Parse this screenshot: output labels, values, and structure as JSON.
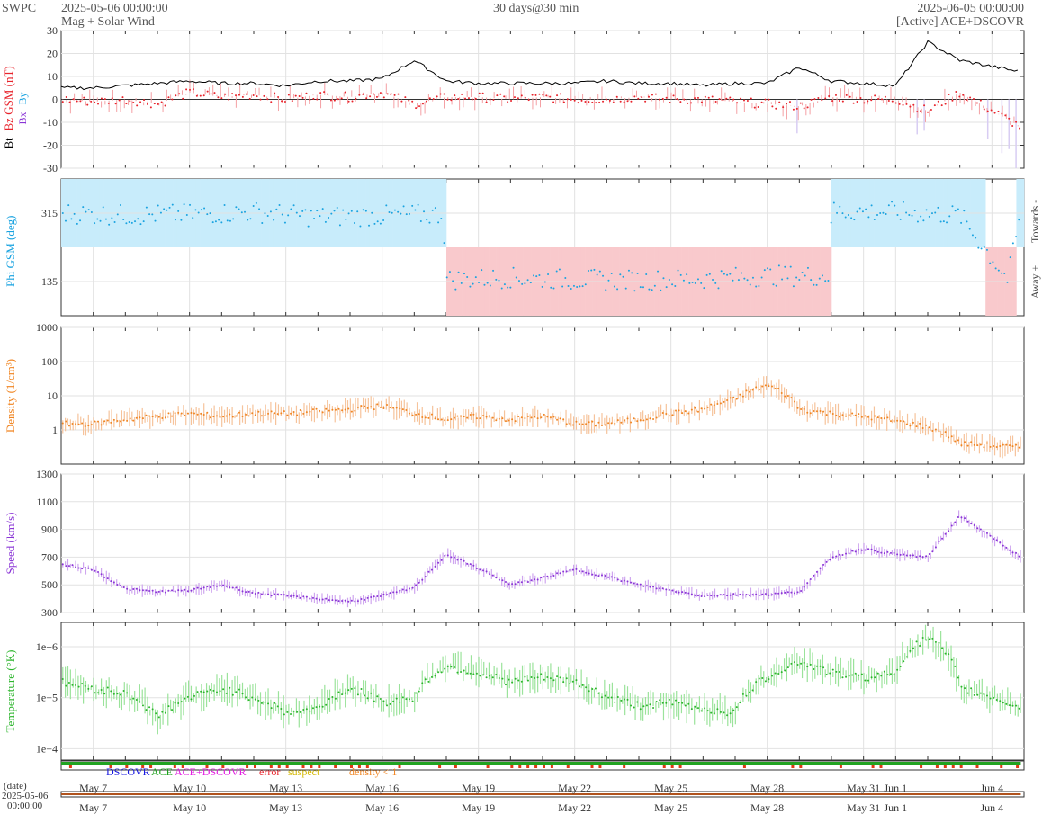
{
  "header": {
    "org": "SWPC",
    "start": "2025-05-06 00:00:00",
    "product": "Mag + Solar Wind",
    "span": "30 days@30 min",
    "end": "2025-06-05 00:00:00",
    "source": "[Active] ACE+DSCOVR"
  },
  "colors": {
    "bt": "#000000",
    "bz": "#e8242c",
    "phi": "#1aa3e0",
    "towards_fill": "#c8ecfb",
    "away_fill": "#f9c9cc",
    "density": "#f08522",
    "density_fill": "#f6c39b",
    "speed": "#8a35d6",
    "speed_fill": "#cfa6ef",
    "temp": "#2cb52c",
    "temp_fill": "#9be39b",
    "bz_neg_fill": "#d8cdf3",
    "source_bar": "#21a321",
    "flag_bar": "#e03a14",
    "dscovr": "#1a1adf",
    "ace": "#1ba11b",
    "ace_dscovr": "#e21ee0",
    "error": "#e8242c",
    "suspect": "#d4b800",
    "density_flag": "#f08522"
  },
  "legend": {
    "dscovr": "DSCOVR",
    "ace": "ACE",
    "ace_dscovr": "ACE+DSCOVR",
    "error": "error",
    "suspect": "suspect",
    "density_flag": "density < 1"
  },
  "date_axis": {
    "label": "(date)",
    "start_date": "2025-05-06",
    "start_time": "00:00:00",
    "ticks": [
      "May 7",
      "May 10",
      "May 13",
      "May 16",
      "May 19",
      "May 22",
      "May 25",
      "May 28",
      "May 31",
      "Jun 1",
      "Jun 4"
    ],
    "tick_days": [
      1,
      4,
      7,
      10,
      13,
      16,
      19,
      22,
      25,
      26,
      29
    ]
  },
  "chart_data": [
    {
      "type": "line",
      "title": "",
      "ylabel_parts": [
        "Bt",
        "Bz GSM (nT)"
      ],
      "legend_parts": [
        "Bx",
        "By"
      ],
      "ylim": [
        -30,
        30
      ],
      "yticks": [
        "30",
        "20",
        "10",
        "0",
        "-10",
        "-20",
        "-30"
      ],
      "x_days": [
        0,
        1,
        2,
        3,
        4,
        5,
        6,
        7,
        8,
        9,
        10,
        11,
        12,
        13,
        14,
        15,
        16,
        17,
        18,
        19,
        20,
        21,
        22,
        23,
        24,
        25,
        26,
        27,
        28,
        29.9
      ],
      "series": [
        {
          "name": "Bt",
          "values": [
            5,
            5,
            6,
            7,
            8,
            7,
            7,
            6,
            8,
            8,
            9,
            17,
            8,
            7,
            7,
            7,
            7,
            8,
            7,
            7,
            6,
            7,
            7,
            14,
            8,
            7,
            6,
            25,
            17,
            12
          ]
        },
        {
          "name": "Bz",
          "values": [
            0,
            -1,
            0,
            -2,
            3,
            1,
            2,
            0,
            2,
            1,
            3,
            -2,
            1,
            1,
            0,
            1,
            0,
            0,
            1,
            0,
            0,
            -1,
            -2,
            -3,
            1,
            0,
            0,
            -5,
            3,
            -12
          ]
        }
      ]
    },
    {
      "type": "scatter",
      "ylabel": "Phi GSM (deg)",
      "right_labels": [
        "Towards -",
        "Away +"
      ],
      "ylim": [
        45,
        405
      ],
      "yticks": [
        "315",
        "135"
      ],
      "x_days": [
        0,
        2,
        4,
        6,
        8,
        11.9,
        12,
        14,
        16,
        18,
        20,
        22,
        23.9,
        24,
        26,
        28,
        29.5,
        29.9
      ],
      "values": [
        315,
        310,
        312,
        318,
        305,
        312,
        140,
        145,
        140,
        138,
        142,
        150,
        150,
        320,
        318,
        310,
        140,
        320
      ]
    },
    {
      "type": "area",
      "ylabel": "Density (1/cm³)",
      "scale": "log",
      "ylim": [
        0.1,
        1000
      ],
      "yticks": [
        "1000",
        "100",
        "10",
        "1"
      ],
      "x_days": [
        0,
        1,
        2,
        3,
        4,
        5,
        6,
        7,
        8,
        9,
        10,
        11,
        12,
        13,
        14,
        15,
        16,
        17,
        18,
        19,
        20,
        21,
        22,
        23,
        24,
        25,
        26,
        27,
        28,
        29.9
      ],
      "values": [
        1.5,
        1.5,
        2,
        2.5,
        3,
        2.5,
        3,
        3,
        3.5,
        4,
        5,
        3,
        2,
        2.5,
        2,
        2.5,
        1.5,
        1.5,
        2,
        3,
        4,
        8,
        20,
        4,
        3,
        2.5,
        1.8,
        1.2,
        0.4,
        0.3
      ]
    },
    {
      "type": "area",
      "ylabel": "Speed (km/s)",
      "ylim": [
        300,
        1300
      ],
      "yticks": [
        "1300",
        "1100",
        "900",
        "700",
        "500",
        "300"
      ],
      "x_days": [
        0,
        1,
        2,
        3,
        4,
        5,
        6,
        7,
        8,
        9,
        10,
        11,
        12,
        13,
        14,
        15,
        16,
        17,
        18,
        19,
        20,
        21,
        22,
        23,
        24,
        25,
        26,
        27,
        28,
        29.9
      ],
      "values": [
        650,
        610,
        470,
        450,
        460,
        500,
        440,
        420,
        400,
        380,
        420,
        480,
        720,
        620,
        500,
        550,
        610,
        560,
        500,
        460,
        420,
        430,
        430,
        450,
        700,
        760,
        720,
        700,
        1000,
        700
      ]
    },
    {
      "type": "area",
      "ylabel": "Temperature (°K)",
      "scale": "log",
      "ylim": [
        6000,
        3000000
      ],
      "yticks": [
        "1e+6",
        "1e+5",
        "1e+4"
      ],
      "x_days": [
        0,
        1,
        2,
        3,
        4,
        5,
        6,
        7,
        8,
        9,
        10,
        11,
        12,
        13,
        14,
        15,
        16,
        17,
        18,
        19,
        20,
        21,
        22,
        23,
        24,
        25,
        26,
        27,
        28,
        29.9
      ],
      "values": [
        200000,
        150000,
        120000,
        40000,
        100000,
        150000,
        100000,
        50000,
        60000,
        150000,
        80000,
        100000,
        400000,
        300000,
        200000,
        250000,
        200000,
        100000,
        70000,
        80000,
        60000,
        50000,
        250000,
        500000,
        300000,
        250000,
        300000,
        1500000,
        150000,
        60000
      ]
    }
  ]
}
